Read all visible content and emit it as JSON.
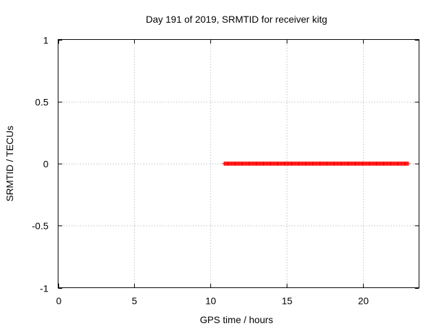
{
  "chart_data": {
    "type": "scatter",
    "title": "Day 191 of 2019, SRMTID for receiver kitg",
    "xlabel": "GPS time / hours",
    "ylabel": "SRMTID / TECUs",
    "xlim": [
      0,
      23.7
    ],
    "ylim": [
      -1,
      1
    ],
    "x_ticks": [
      0,
      5,
      10,
      15,
      20
    ],
    "y_ticks": [
      -1,
      -0.5,
      0,
      0.5,
      1
    ],
    "x_tick_labels": [
      "0",
      "5",
      "10",
      "15",
      "20"
    ],
    "y_tick_labels": [
      "-1",
      "-0.5",
      "0",
      "0.5",
      "1"
    ],
    "grid": true,
    "marker": "+",
    "series": [
      {
        "name": "SRMTID",
        "color": "#ff0000",
        "x_start": 10.9,
        "x_end": 23.0,
        "x_step": 0.05,
        "y_value": 0
      }
    ]
  }
}
